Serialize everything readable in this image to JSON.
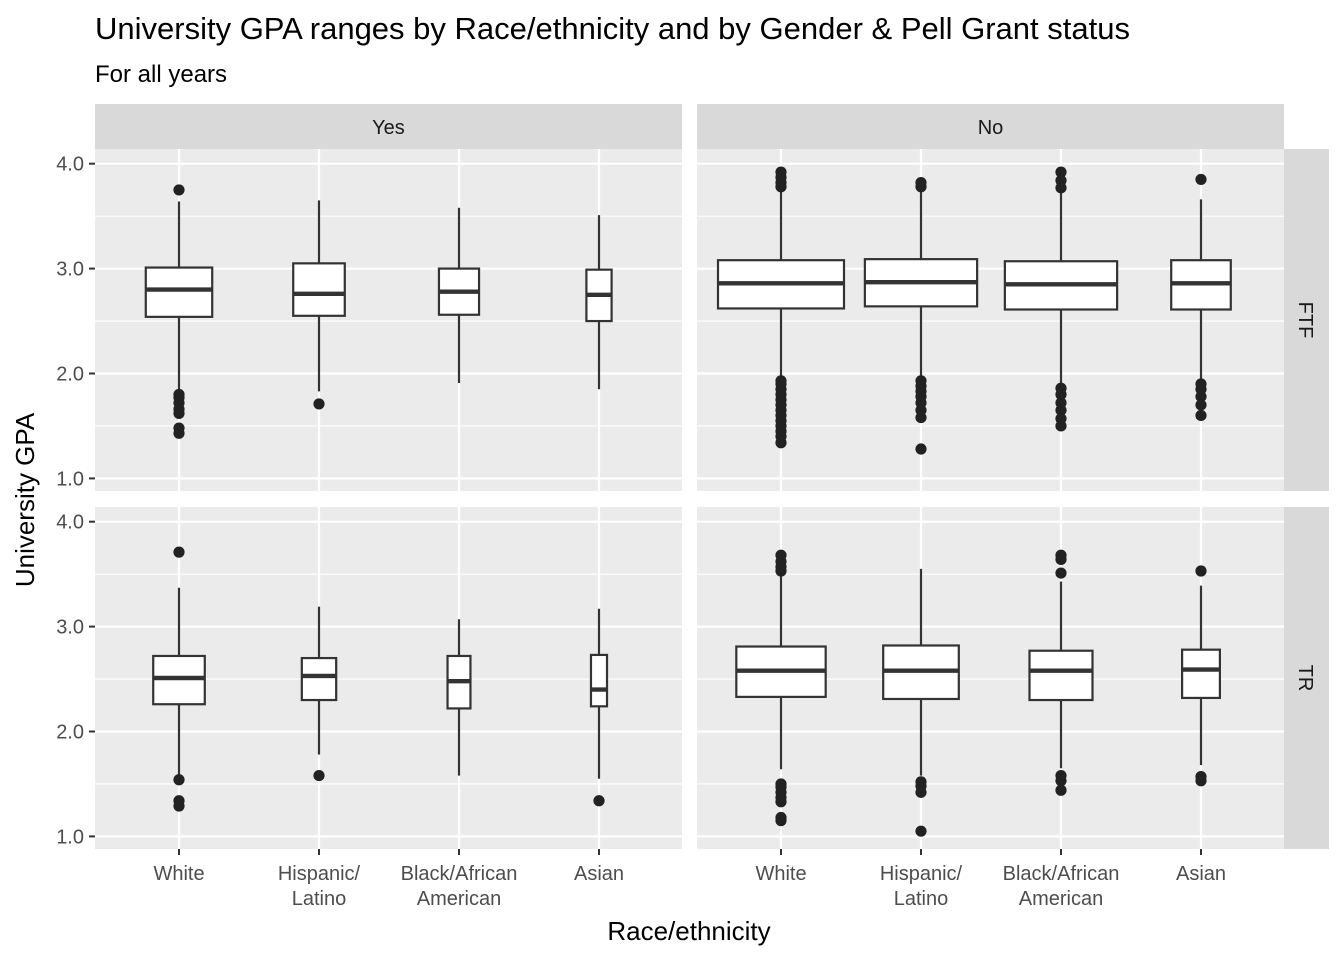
{
  "chart_data": {
    "type": "boxplot",
    "title": "University GPA ranges by Race/ethnicity and by Gender & Pell Grant status",
    "subtitle": "For all years",
    "xlabel": "Race/ethnicity",
    "ylabel": "University GPA",
    "ylim": [
      0.88,
      4.14
    ],
    "y_ticks": [
      "1.0",
      "2.0",
      "3.0",
      "4.0"
    ],
    "categories": [
      "White",
      "Hispanic/ Latino",
      "Black/African American",
      "Asian"
    ],
    "category_lines": [
      [
        "White"
      ],
      [
        "Hispanic/",
        "Latino"
      ],
      [
        "Black/African",
        "American"
      ],
      [
        "Asian"
      ]
    ],
    "facet_columns": [
      "Yes",
      "No"
    ],
    "facet_rows": [
      "FTF",
      "TR"
    ],
    "grid": true,
    "colors": {
      "panel": "#ebebeb",
      "grid": "#ffffff",
      "strip": "#d9d9d9",
      "box_line": "#333333",
      "outlier": "#222222"
    },
    "panels": [
      {
        "col": "Yes",
        "row": "FTF",
        "boxes": [
          {
            "category": "White",
            "width": 0.58,
            "whisker_low": 1.82,
            "q1": 2.54,
            "median": 2.8,
            "q3": 3.01,
            "whisker_high": 3.64,
            "outliers": [
              1.43,
              1.48,
              1.62,
              1.66,
              1.72,
              1.77,
              1.8,
              3.75
            ]
          },
          {
            "category": "Hispanic/ Latino",
            "width": 0.45,
            "whisker_low": 1.83,
            "q1": 2.55,
            "median": 2.76,
            "q3": 3.05,
            "whisker_high": 3.65,
            "outliers": [
              1.71
            ]
          },
          {
            "category": "Black/African American",
            "width": 0.35,
            "whisker_low": 1.91,
            "q1": 2.56,
            "median": 2.78,
            "q3": 3.0,
            "whisker_high": 3.58,
            "outliers": []
          },
          {
            "category": "Asian",
            "width": 0.22,
            "whisker_low": 1.85,
            "q1": 2.5,
            "median": 2.75,
            "q3": 2.99,
            "whisker_high": 3.51,
            "outliers": []
          }
        ]
      },
      {
        "col": "No",
        "row": "FTF",
        "boxes": [
          {
            "category": "White",
            "width": 1.1,
            "whisker_low": 1.94,
            "q1": 2.62,
            "median": 2.86,
            "q3": 3.08,
            "whisker_high": 3.76,
            "outliers": [
              1.34,
              1.4,
              1.45,
              1.5,
              1.55,
              1.6,
              1.65,
              1.7,
              1.75,
              1.8,
              1.85,
              1.9,
              1.93,
              3.78,
              3.82,
              3.87,
              3.92
            ]
          },
          {
            "category": "Hispanic/ Latino",
            "width": 0.98,
            "whisker_low": 1.97,
            "q1": 2.64,
            "median": 2.87,
            "q3": 3.09,
            "whisker_high": 3.77,
            "outliers": [
              1.28,
              1.58,
              1.65,
              1.72,
              1.78,
              1.83,
              1.88,
              1.93,
              3.78,
              3.82
            ]
          },
          {
            "category": "Black/African American",
            "width": 0.98,
            "whisker_low": 1.9,
            "q1": 2.61,
            "median": 2.85,
            "q3": 3.07,
            "whisker_high": 3.76,
            "outliers": [
              1.5,
              1.57,
              1.65,
              1.72,
              1.8,
              1.86,
              3.77,
              3.84,
              3.92
            ]
          },
          {
            "category": "Asian",
            "width": 0.52,
            "whisker_low": 1.92,
            "q1": 2.61,
            "median": 2.86,
            "q3": 3.08,
            "whisker_high": 3.66,
            "outliers": [
              1.6,
              1.7,
              1.78,
              1.85,
              1.9,
              3.85
            ]
          }
        ]
      },
      {
        "col": "Yes",
        "row": "TR",
        "boxes": [
          {
            "category": "White",
            "width": 0.45,
            "whisker_low": 1.56,
            "q1": 2.26,
            "median": 2.51,
            "q3": 2.72,
            "whisker_high": 3.37,
            "outliers": [
              1.29,
              1.34,
              1.54,
              3.71
            ]
          },
          {
            "category": "Hispanic/ Latino",
            "width": 0.3,
            "whisker_low": 1.78,
            "q1": 2.3,
            "median": 2.53,
            "q3": 2.7,
            "whisker_high": 3.19,
            "outliers": [
              1.58
            ]
          },
          {
            "category": "Black/African American",
            "width": 0.2,
            "whisker_low": 1.58,
            "q1": 2.22,
            "median": 2.48,
            "q3": 2.72,
            "whisker_high": 3.07,
            "outliers": []
          },
          {
            "category": "Asian",
            "width": 0.14,
            "whisker_low": 1.55,
            "q1": 2.24,
            "median": 2.4,
            "q3": 2.73,
            "whisker_high": 3.17,
            "outliers": [
              1.34
            ]
          }
        ]
      },
      {
        "col": "No",
        "row": "TR",
        "boxes": [
          {
            "category": "White",
            "width": 0.78,
            "whisker_low": 1.64,
            "q1": 2.33,
            "median": 2.58,
            "q3": 2.81,
            "whisker_high": 3.5,
            "outliers": [
              1.15,
              1.18,
              1.33,
              1.37,
              1.42,
              1.47,
              1.5,
              3.53,
              3.57,
              3.62,
              3.68
            ]
          },
          {
            "category": "Hispanic/ Latino",
            "width": 0.66,
            "whisker_low": 1.58,
            "q1": 2.31,
            "median": 2.58,
            "q3": 2.82,
            "whisker_high": 3.55,
            "outliers": [
              1.05,
              1.42,
              1.48,
              1.52
            ]
          },
          {
            "category": "Black/African American",
            "width": 0.55,
            "whisker_low": 1.65,
            "q1": 2.3,
            "median": 2.58,
            "q3": 2.77,
            "whisker_high": 3.43,
            "outliers": [
              1.44,
              1.53,
              1.58,
              3.51,
              3.64,
              3.68
            ]
          },
          {
            "category": "Asian",
            "width": 0.33,
            "whisker_low": 1.68,
            "q1": 2.32,
            "median": 2.59,
            "q3": 2.78,
            "whisker_high": 3.39,
            "outliers": [
              1.53,
              1.57,
              3.53
            ]
          }
        ]
      }
    ]
  }
}
